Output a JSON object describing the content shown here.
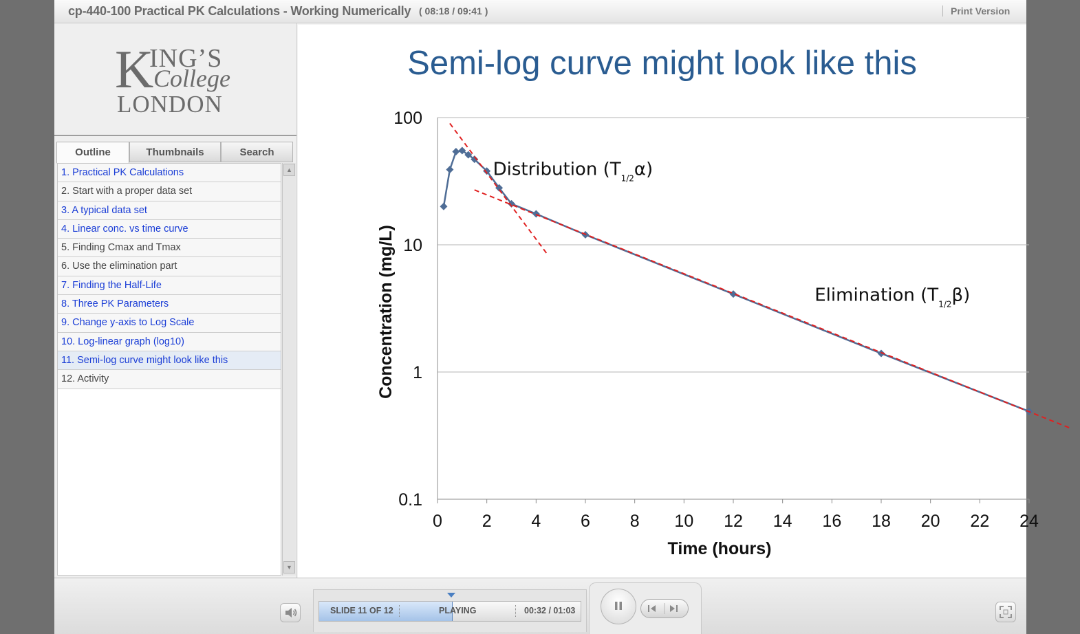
{
  "window": {
    "course_title": "cp-440-100 Practical PK Calculations - Working Numerically",
    "elapsed": "( 08:18 / 09:41 )",
    "print_version": "Print Version"
  },
  "logo": {
    "line1_initial": "K",
    "line1_rest": "ING’S",
    "line2": "College",
    "line3": "LONDON"
  },
  "tabs": [
    {
      "label": "Outline",
      "active": true
    },
    {
      "label": "Thumbnails",
      "active": false
    },
    {
      "label": "Search",
      "active": false
    }
  ],
  "outline": [
    {
      "label": "1.  Practical PK Calculations",
      "color": "#1a3dd6",
      "selected": false
    },
    {
      "label": "2.  Start with a proper data set",
      "color": "#444444",
      "selected": false
    },
    {
      "label": "3.  A typical data set",
      "color": "#1a3dd6",
      "selected": false
    },
    {
      "label": "4.  Linear conc. vs time curve",
      "color": "#1a3dd6",
      "selected": false
    },
    {
      "label": "5.  Finding Cmax and Tmax",
      "color": "#444444",
      "selected": false
    },
    {
      "label": "6.  Use the elimination part",
      "color": "#444444",
      "selected": false
    },
    {
      "label": "7.  Finding the Half-Life",
      "color": "#1a3dd6",
      "selected": false
    },
    {
      "label": "8.  Three PK Parameters",
      "color": "#1a3dd6",
      "selected": false
    },
    {
      "label": "9.  Change y-axis to Log Scale",
      "color": "#1a3dd6",
      "selected": false
    },
    {
      "label": "10.  Log-linear graph (log10)",
      "color": "#1a3dd6",
      "selected": false
    },
    {
      "label": "11.  Semi-log curve might look like this",
      "color": "#1a3dd6",
      "selected": true
    },
    {
      "label": "12.  Activity",
      "color": "#444444",
      "selected": false
    }
  ],
  "slide": {
    "title": "Semi-log curve might look like this"
  },
  "chart_data": {
    "type": "scatter",
    "xlabel": "Time (hours)",
    "ylabel": "Concentration (mg/L)",
    "xlim": [
      0,
      24
    ],
    "ylim": [
      0.1,
      100
    ],
    "y_scale": "log",
    "x_ticks": [
      "0",
      "2",
      "4",
      "6",
      "8",
      "10",
      "12",
      "14",
      "16",
      "18",
      "20",
      "22",
      "24"
    ],
    "y_ticks": [
      "100",
      "10",
      "1",
      "0.1"
    ],
    "y_tick_values": [
      100,
      10,
      1,
      0.1
    ],
    "grid": "horizontal",
    "series": [
      {
        "color": "#4f6d96",
        "marker": "diamond",
        "x": [
          0.25,
          0.5,
          0.75,
          1.0,
          1.25,
          1.5,
          2.0,
          2.5,
          3.0,
          4.0,
          6.0,
          12.0,
          18.0,
          24.0
        ],
        "y": [
          20,
          39,
          54,
          55,
          51,
          47,
          38,
          28,
          21,
          17.5,
          12,
          4.1,
          1.4,
          0.49
        ]
      }
    ],
    "fit_lines": [
      {
        "x": [
          0.5,
          4.5
        ],
        "y": [
          90,
          8.2
        ],
        "color": "#e02020",
        "style": "dashed"
      },
      {
        "x": [
          1.5,
          25.7
        ],
        "y": [
          27,
          0.36
        ],
        "color": "#e02020",
        "style": "dashed"
      }
    ],
    "annotations": [
      {
        "text": "Distribution (T",
        "sub": "1/2",
        "greek": "α",
        "close": ")",
        "x": 2.25,
        "y": 38
      },
      {
        "text": "Elimination (T",
        "sub": "1/2",
        "greek": "β",
        "close": ")",
        "x": 15.3,
        "y": 3.9
      }
    ]
  },
  "player": {
    "slide_counter": "SLIDE 11 OF 12",
    "state": "PLAYING",
    "time": "00:32 / 01:03",
    "progress": 0.508
  },
  "icons": {
    "volume": "speaker-icon",
    "pause": "pause-icon",
    "previous": "previous-icon",
    "next": "next-icon",
    "fullscreen": "fullscreen-icon",
    "scroll_up": "scroll-up-icon",
    "scroll_down": "scroll-down-icon"
  }
}
